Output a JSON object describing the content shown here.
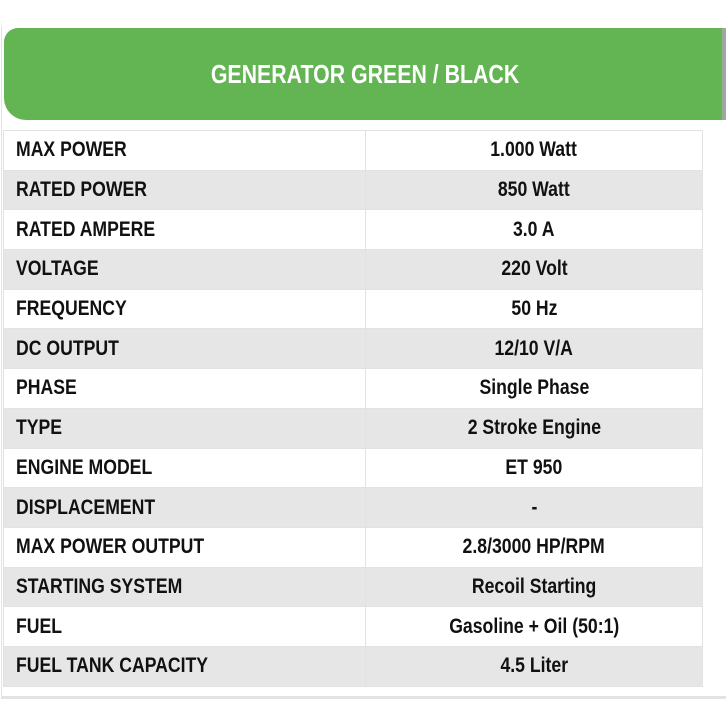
{
  "title": "GENERATOR GREEN / BLACK",
  "colors": {
    "banner": "#63b553",
    "row_alt": "#e6e6e6"
  },
  "specs": [
    {
      "label": "MAX POWER",
      "value": "1.000 Watt"
    },
    {
      "label": "RATED POWER",
      "value": "850 Watt"
    },
    {
      "label": "RATED AMPERE",
      "value": "3.0 A"
    },
    {
      "label": "VOLTAGE",
      "value": "220 Volt"
    },
    {
      "label": "FREQUENCY",
      "value": "50 Hz"
    },
    {
      "label": "DC OUTPUT",
      "value": "12/10 V/A"
    },
    {
      "label": "PHASE",
      "value": "Single Phase"
    },
    {
      "label": "TYPE",
      "value": "2 Stroke Engine"
    },
    {
      "label": "ENGINE MODEL",
      "value": "ET 950"
    },
    {
      "label": "DISPLACEMENT",
      "value": "-"
    },
    {
      "label": "MAX POWER OUTPUT",
      "value": "2.8/3000 HP/RPM"
    },
    {
      "label": "STARTING SYSTEM",
      "value": "Recoil Starting"
    },
    {
      "label": "FUEL",
      "value": "Gasoline + Oil (50:1)"
    },
    {
      "label": "FUEL TANK CAPACITY",
      "value": "4.5 Liter"
    }
  ]
}
